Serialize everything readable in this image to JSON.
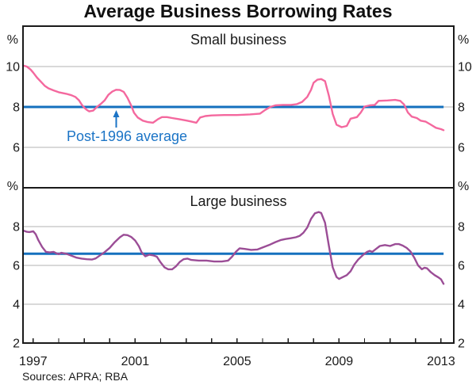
{
  "title": "Average Business Borrowing Rates",
  "sources": "Sources: APRA; RBA",
  "annotation": {
    "text": "Post-1996 average",
    "color": "#1b74c6"
  },
  "colors": {
    "small_business_line": "#f4689e",
    "large_business_line": "#9b4d96",
    "average_line": "#1470be",
    "gridline": "#b3b3b3",
    "axis": "#1a1a1a"
  },
  "x_axis": {
    "range": [
      1996.6,
      2013.5
    ],
    "ticks": [
      1997,
      1998,
      1999,
      2000,
      2001,
      2002,
      2003,
      2004,
      2005,
      2006,
      2007,
      2008,
      2009,
      2010,
      2011,
      2012,
      2013
    ],
    "labeled_ticks": [
      1997,
      2001,
      2005,
      2009,
      2013
    ]
  },
  "chart_data": [
    {
      "type": "line",
      "panel": "top",
      "title": "Small business",
      "unit": "%",
      "ylim": [
        4,
        12
      ],
      "gridlines": [
        6,
        8,
        10
      ],
      "ytick_labels": [
        6,
        8,
        10
      ],
      "average_line": {
        "label": "Post-1996 average",
        "value": 8.0
      },
      "series": [
        {
          "name": "Small business borrowing rate",
          "color": "#f4689e",
          "points": [
            [
              1996.6,
              10.05
            ],
            [
              1996.75,
              10.0
            ],
            [
              1996.9,
              9.85
            ],
            [
              1997.0,
              9.7
            ],
            [
              1997.15,
              9.45
            ],
            [
              1997.3,
              9.25
            ],
            [
              1997.45,
              9.05
            ],
            [
              1997.6,
              8.92
            ],
            [
              1997.8,
              8.82
            ],
            [
              1998.0,
              8.73
            ],
            [
              1998.3,
              8.65
            ],
            [
              1998.5,
              8.58
            ],
            [
              1998.65,
              8.5
            ],
            [
              1998.8,
              8.32
            ],
            [
              1998.9,
              8.12
            ],
            [
              1999.0,
              7.97
            ],
            [
              1999.1,
              7.86
            ],
            [
              1999.2,
              7.78
            ],
            [
              1999.35,
              7.82
            ],
            [
              1999.5,
              8.0
            ],
            [
              1999.65,
              8.15
            ],
            [
              1999.8,
              8.32
            ],
            [
              1999.95,
              8.6
            ],
            [
              2000.1,
              8.76
            ],
            [
              2000.25,
              8.85
            ],
            [
              2000.4,
              8.84
            ],
            [
              2000.55,
              8.75
            ],
            [
              2000.7,
              8.45
            ],
            [
              2000.85,
              8.05
            ],
            [
              2000.95,
              7.72
            ],
            [
              2001.1,
              7.48
            ],
            [
              2001.3,
              7.32
            ],
            [
              2001.5,
              7.25
            ],
            [
              2001.7,
              7.22
            ],
            [
              2001.9,
              7.4
            ],
            [
              2002.05,
              7.5
            ],
            [
              2002.25,
              7.5
            ],
            [
              2002.45,
              7.45
            ],
            [
              2002.7,
              7.4
            ],
            [
              2003.0,
              7.33
            ],
            [
              2003.2,
              7.28
            ],
            [
              2003.4,
              7.22
            ],
            [
              2003.55,
              7.48
            ],
            [
              2003.75,
              7.55
            ],
            [
              2004.0,
              7.58
            ],
            [
              2004.5,
              7.6
            ],
            [
              2005.0,
              7.6
            ],
            [
              2005.5,
              7.63
            ],
            [
              2005.9,
              7.67
            ],
            [
              2006.1,
              7.85
            ],
            [
              2006.3,
              8.0
            ],
            [
              2006.5,
              8.08
            ],
            [
              2006.8,
              8.1
            ],
            [
              2007.1,
              8.1
            ],
            [
              2007.35,
              8.14
            ],
            [
              2007.55,
              8.25
            ],
            [
              2007.75,
              8.5
            ],
            [
              2007.9,
              8.85
            ],
            [
              2008.0,
              9.2
            ],
            [
              2008.15,
              9.35
            ],
            [
              2008.3,
              9.38
            ],
            [
              2008.45,
              9.28
            ],
            [
              2008.6,
              8.55
            ],
            [
              2008.75,
              7.65
            ],
            [
              2008.9,
              7.12
            ],
            [
              2009.1,
              7.0
            ],
            [
              2009.3,
              7.06
            ],
            [
              2009.45,
              7.42
            ],
            [
              2009.7,
              7.5
            ],
            [
              2009.85,
              7.72
            ],
            [
              2010.0,
              8.02
            ],
            [
              2010.2,
              8.08
            ],
            [
              2010.4,
              8.1
            ],
            [
              2010.55,
              8.3
            ],
            [
              2010.9,
              8.32
            ],
            [
              2011.2,
              8.35
            ],
            [
              2011.4,
              8.3
            ],
            [
              2011.55,
              8.12
            ],
            [
              2011.7,
              7.72
            ],
            [
              2011.85,
              7.52
            ],
            [
              2012.05,
              7.45
            ],
            [
              2012.2,
              7.32
            ],
            [
              2012.4,
              7.27
            ],
            [
              2012.6,
              7.12
            ],
            [
              2012.8,
              6.97
            ],
            [
              2013.0,
              6.9
            ],
            [
              2013.1,
              6.85
            ]
          ]
        }
      ]
    },
    {
      "type": "line",
      "panel": "bottom",
      "title": "Large business",
      "unit": "%",
      "ylim": [
        2,
        10
      ],
      "gridlines": [
        4,
        6,
        8
      ],
      "ytick_labels": [
        2,
        4,
        6,
        8
      ],
      "average_line": {
        "label": "Post-1996 average",
        "value": 6.6
      },
      "series": [
        {
          "name": "Large business borrowing rate",
          "color": "#9b4d96",
          "points": [
            [
              1996.6,
              7.8
            ],
            [
              1996.75,
              7.73
            ],
            [
              1996.85,
              7.72
            ],
            [
              1997.0,
              7.76
            ],
            [
              1997.1,
              7.6
            ],
            [
              1997.2,
              7.3
            ],
            [
              1997.35,
              6.95
            ],
            [
              1997.5,
              6.7
            ],
            [
              1997.65,
              6.67
            ],
            [
              1997.8,
              6.7
            ],
            [
              1997.9,
              6.63
            ],
            [
              1998.0,
              6.58
            ],
            [
              1998.1,
              6.65
            ],
            [
              1998.3,
              6.6
            ],
            [
              1998.5,
              6.5
            ],
            [
              1998.7,
              6.4
            ],
            [
              1998.9,
              6.35
            ],
            [
              1999.1,
              6.32
            ],
            [
              1999.3,
              6.3
            ],
            [
              1999.45,
              6.36
            ],
            [
              1999.6,
              6.5
            ],
            [
              1999.8,
              6.68
            ],
            [
              2000.0,
              6.9
            ],
            [
              2000.2,
              7.2
            ],
            [
              2000.4,
              7.45
            ],
            [
              2000.55,
              7.58
            ],
            [
              2000.7,
              7.56
            ],
            [
              2000.85,
              7.46
            ],
            [
              2001.0,
              7.28
            ],
            [
              2001.15,
              6.98
            ],
            [
              2001.25,
              6.68
            ],
            [
              2001.4,
              6.47
            ],
            [
              2001.55,
              6.55
            ],
            [
              2001.7,
              6.52
            ],
            [
              2001.85,
              6.45
            ],
            [
              2002.0,
              6.15
            ],
            [
              2002.15,
              5.9
            ],
            [
              2002.3,
              5.8
            ],
            [
              2002.45,
              5.8
            ],
            [
              2002.6,
              5.95
            ],
            [
              2002.75,
              6.18
            ],
            [
              2002.9,
              6.32
            ],
            [
              2003.05,
              6.35
            ],
            [
              2003.2,
              6.28
            ],
            [
              2003.5,
              6.25
            ],
            [
              2003.8,
              6.25
            ],
            [
              2004.1,
              6.2
            ],
            [
              2004.4,
              6.2
            ],
            [
              2004.65,
              6.25
            ],
            [
              2004.8,
              6.45
            ],
            [
              2004.95,
              6.7
            ],
            [
              2005.1,
              6.88
            ],
            [
              2005.3,
              6.85
            ],
            [
              2005.55,
              6.8
            ],
            [
              2005.8,
              6.82
            ],
            [
              2006.05,
              6.95
            ],
            [
              2006.25,
              7.05
            ],
            [
              2006.5,
              7.2
            ],
            [
              2006.7,
              7.3
            ],
            [
              2006.9,
              7.36
            ],
            [
              2007.1,
              7.4
            ],
            [
              2007.3,
              7.45
            ],
            [
              2007.45,
              7.52
            ],
            [
              2007.6,
              7.68
            ],
            [
              2007.75,
              7.95
            ],
            [
              2007.9,
              8.4
            ],
            [
              2008.05,
              8.68
            ],
            [
              2008.2,
              8.75
            ],
            [
              2008.3,
              8.7
            ],
            [
              2008.45,
              8.2
            ],
            [
              2008.6,
              7.0
            ],
            [
              2008.75,
              5.9
            ],
            [
              2008.9,
              5.4
            ],
            [
              2009.0,
              5.3
            ],
            [
              2009.15,
              5.4
            ],
            [
              2009.3,
              5.5
            ],
            [
              2009.45,
              5.7
            ],
            [
              2009.6,
              6.05
            ],
            [
              2009.75,
              6.3
            ],
            [
              2009.95,
              6.55
            ],
            [
              2010.1,
              6.7
            ],
            [
              2010.2,
              6.75
            ],
            [
              2010.3,
              6.7
            ],
            [
              2010.45,
              6.85
            ],
            [
              2010.6,
              7.0
            ],
            [
              2010.8,
              7.05
            ],
            [
              2011.0,
              7.0
            ],
            [
              2011.2,
              7.1
            ],
            [
              2011.35,
              7.1
            ],
            [
              2011.5,
              7.02
            ],
            [
              2011.65,
              6.9
            ],
            [
              2011.8,
              6.72
            ],
            [
              2011.95,
              6.4
            ],
            [
              2012.1,
              6.0
            ],
            [
              2012.25,
              5.8
            ],
            [
              2012.35,
              5.88
            ],
            [
              2012.45,
              5.85
            ],
            [
              2012.6,
              5.65
            ],
            [
              2012.75,
              5.5
            ],
            [
              2012.9,
              5.38
            ],
            [
              2013.0,
              5.28
            ],
            [
              2013.1,
              5.05
            ]
          ]
        }
      ]
    }
  ]
}
